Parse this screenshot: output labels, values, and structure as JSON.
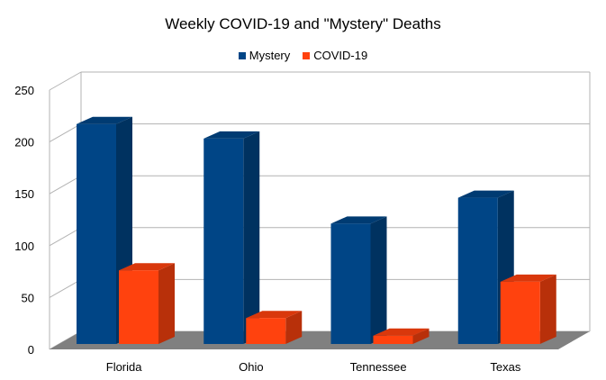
{
  "chart_data": {
    "type": "bar",
    "title": "Weekly COVID-19 and \"Mystery\" Deaths",
    "categories": [
      "Florida",
      "Ohio",
      "Tennessee",
      "Texas"
    ],
    "series": [
      {
        "name": "Mystery",
        "values": [
          212,
          198,
          116,
          141
        ],
        "color": "#004586"
      },
      {
        "name": "COVID-19",
        "values": [
          71,
          25,
          8,
          60
        ],
        "color": "#ff420e"
      }
    ],
    "ylim": [
      0,
      250
    ],
    "yticks": [
      0,
      50,
      100,
      150,
      200,
      250
    ],
    "grid": true,
    "legend_position": "top",
    "style": "3d"
  }
}
